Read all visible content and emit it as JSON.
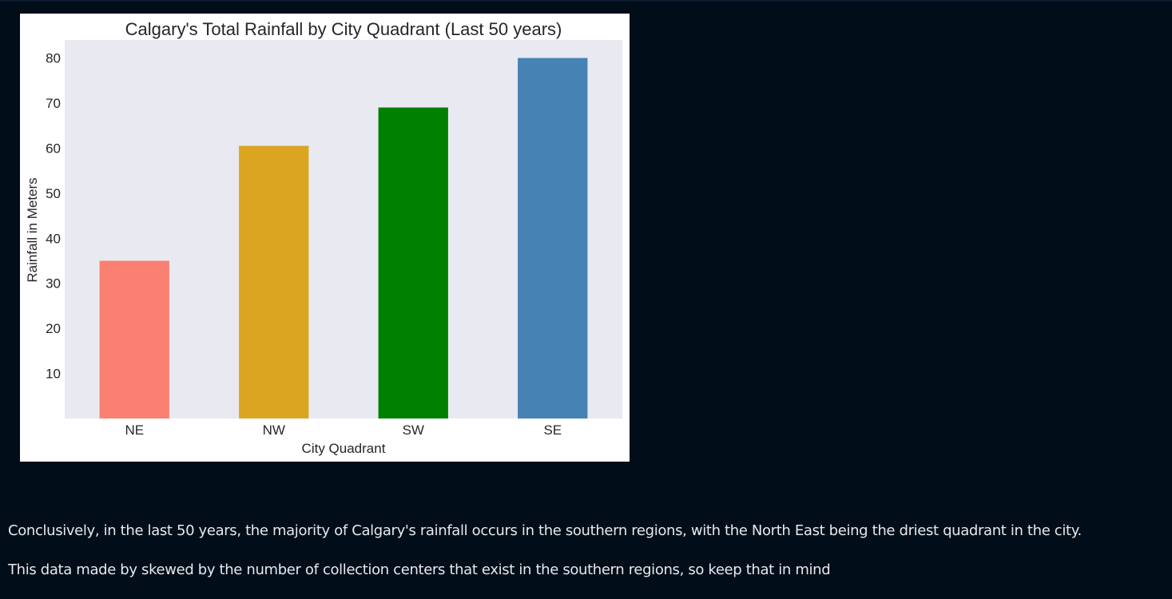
{
  "chart_data": {
    "type": "bar",
    "title": "Calgary's Total Rainfall by City Quadrant (Last 50 years)",
    "xlabel": "City Quadrant",
    "ylabel": "Rainfall in Meters",
    "categories": [
      "NE",
      "NW",
      "SW",
      "SE"
    ],
    "values": [
      35,
      60.5,
      69,
      80
    ],
    "colors": [
      "#fa8072",
      "#daa520",
      "#008000",
      "#4682b4"
    ],
    "ylim": [
      0,
      84
    ],
    "yticks": [
      10,
      20,
      30,
      40,
      50,
      60,
      70,
      80
    ],
    "grid": false,
    "plot_background": "#e9e9f1",
    "legend": "none"
  },
  "text": {
    "conclusion": "Conclusively, in the last 50 years, the majority of Calgary's rainfall occurs in the southern regions, with the North East being the driest quadrant in the city.",
    "caveat": "This data made by skewed by the number of collection centers that exist in the southern regions, so keep that in mind"
  }
}
